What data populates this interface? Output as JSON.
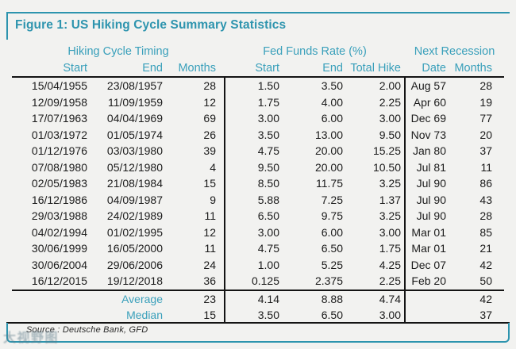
{
  "chart_data": {
    "type": "table",
    "title": "Figure 1: US Hiking Cycle Summary Statistics",
    "groups": [
      "Hiking Cycle Timing",
      "Fed Funds Rate (%)",
      "Next Recession"
    ],
    "columns": [
      "Start",
      "End",
      "Months",
      "Start",
      "End",
      "Total Hike",
      "Date",
      "Months"
    ],
    "rows": [
      [
        "15/04/1955",
        "23/08/1957",
        "28",
        "1.50",
        "3.50",
        "2.00",
        "Aug 57",
        "28"
      ],
      [
        "12/09/1958",
        "11/09/1959",
        "12",
        "1.75",
        "4.00",
        "2.25",
        "Apr 60",
        "19"
      ],
      [
        "17/07/1963",
        "04/04/1969",
        "69",
        "3.00",
        "6.00",
        "3.00",
        "Dec 69",
        "77"
      ],
      [
        "01/03/1972",
        "01/05/1974",
        "26",
        "3.50",
        "13.00",
        "9.50",
        "Nov 73",
        "20"
      ],
      [
        "01/12/1976",
        "03/03/1980",
        "39",
        "4.75",
        "20.00",
        "15.25",
        "Jan 80",
        "37"
      ],
      [
        "07/08/1980",
        "05/12/1980",
        "4",
        "9.50",
        "20.00",
        "10.50",
        "Jul 81",
        "11"
      ],
      [
        "02/05/1983",
        "21/08/1984",
        "15",
        "8.50",
        "11.75",
        "3.25",
        "Jul 90",
        "86"
      ],
      [
        "16/12/1986",
        "04/09/1987",
        "9",
        "5.88",
        "7.25",
        "1.37",
        "Jul 90",
        "43"
      ],
      [
        "29/03/1988",
        "24/02/1989",
        "11",
        "6.50",
        "9.75",
        "3.25",
        "Jul 90",
        "28"
      ],
      [
        "04/02/1994",
        "01/02/1995",
        "12",
        "3.00",
        "6.00",
        "3.00",
        "Mar 01",
        "85"
      ],
      [
        "30/06/1999",
        "16/05/2000",
        "11",
        "4.75",
        "6.50",
        "1.75",
        "Mar 01",
        "21"
      ],
      [
        "30/06/2004",
        "29/06/2006",
        "24",
        "1.00",
        "5.25",
        "4.25",
        "Dec 07",
        "42"
      ],
      [
        "16/12/2015",
        "19/12/2018",
        "36",
        "0.125",
        "2.375",
        "2.25",
        "Feb 20",
        "50"
      ]
    ],
    "summary": [
      {
        "label": "Average",
        "months": "23",
        "ff_start": "4.14",
        "ff_end": "8.88",
        "total_hike": "4.74",
        "recession_date": "",
        "recession_months": "42"
      },
      {
        "label": "Median",
        "months": "15",
        "ff_start": "3.50",
        "ff_end": "6.50",
        "total_hike": "3.00",
        "recession_date": "",
        "recession_months": "37"
      }
    ],
    "source": "Source : Deutsche Bank, GFD",
    "layout_hints": {
      "grid": "off",
      "section_dividers": "vertical black rules after Months and Total Hike columns"
    }
  },
  "watermark": "大视野图",
  "colors": {
    "accent": "#2d94ae",
    "header_text": "#3aa0bb",
    "data_text": "#1b1b1b",
    "rule_line": "#141414",
    "background": "#f2f2f0"
  }
}
